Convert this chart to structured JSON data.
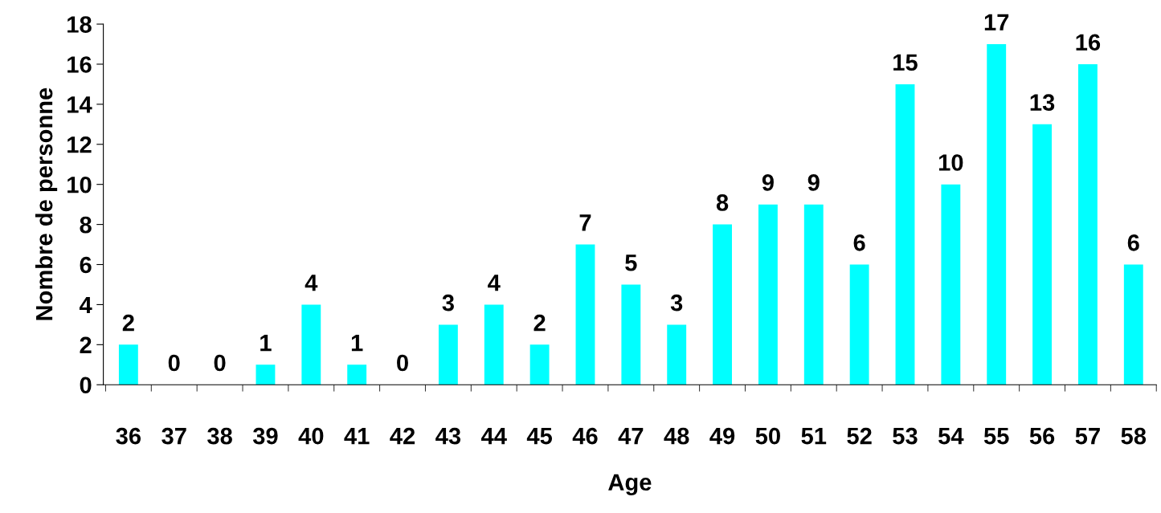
{
  "chart_data": {
    "type": "bar",
    "xlabel": "Age",
    "ylabel": "Nombre de personne",
    "categories": [
      "36",
      "37",
      "38",
      "39",
      "40",
      "41",
      "42",
      "43",
      "44",
      "45",
      "46",
      "47",
      "48",
      "49",
      "50",
      "51",
      "52",
      "53",
      "54",
      "55",
      "56",
      "57",
      "58"
    ],
    "values": [
      2,
      0,
      0,
      1,
      4,
      1,
      0,
      3,
      4,
      2,
      7,
      5,
      3,
      8,
      9,
      9,
      6,
      15,
      10,
      17,
      13,
      16,
      6
    ],
    "color": "#00ffff",
    "ylim": [
      0,
      18
    ],
    "yticks": [
      0,
      2,
      4,
      6,
      8,
      10,
      12,
      14,
      16,
      18
    ],
    "data_labels": true,
    "grid": false
  }
}
